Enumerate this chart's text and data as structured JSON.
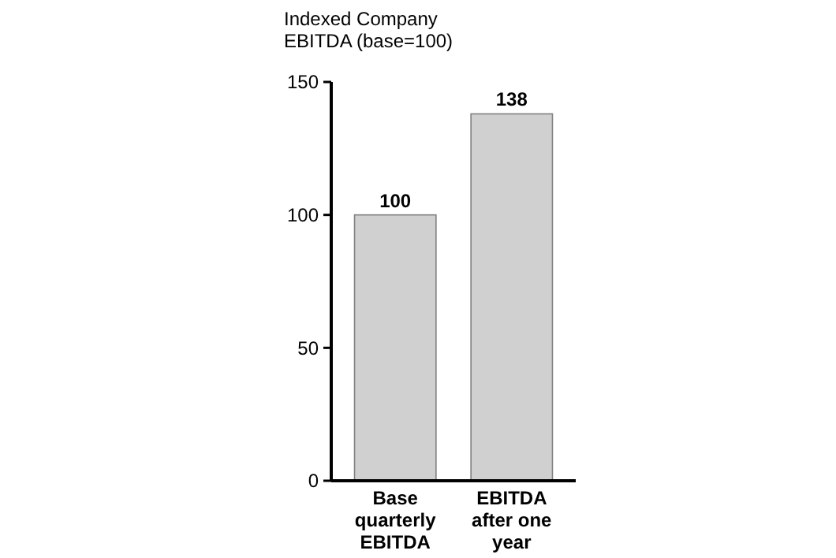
{
  "chart_data": {
    "type": "bar",
    "ylabel": "Indexed Company EBITDA (base=100)",
    "categories": [
      "Base quarterly EBITDA",
      "EBITDA after one year"
    ],
    "values": [
      100,
      138
    ],
    "color": "#d0d0d0",
    "ylim": [
      0,
      150
    ],
    "yticks": [
      0,
      50,
      100,
      150
    ],
    "data_labels": true,
    "grid": false
  }
}
